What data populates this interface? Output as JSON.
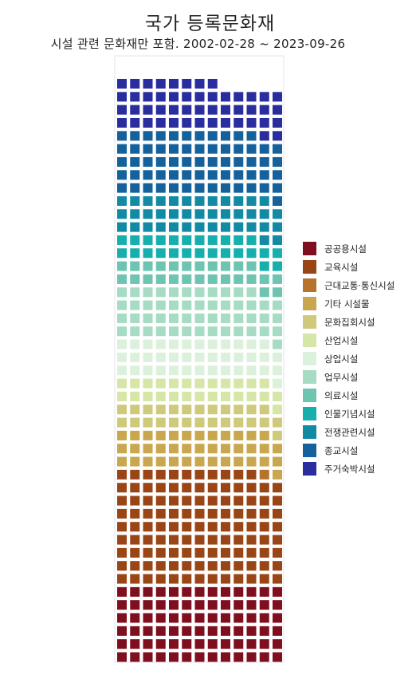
{
  "title": "국가 등록문화재",
  "subtitle": "시설 관련 문화재만 포함. 2002-02-28 ~ 2023-09-26",
  "chart_data": {
    "type": "waffle",
    "columns": 13,
    "legend_position": "right",
    "series": [
      {
        "name": "공공용시설",
        "value": 78,
        "color": "#7f0f1e"
      },
      {
        "name": "교육시설",
        "value": 115,
        "color": "#9a4516"
      },
      {
        "name": "근대교통·통신시설",
        "value": 1,
        "color": "#b5732b"
      },
      {
        "name": "기타 시설물",
        "value": 39,
        "color": "#c9a74e"
      },
      {
        "name": "문화집회시설",
        "value": 26,
        "color": "#cfc97b"
      },
      {
        "name": "산업시설",
        "value": 26,
        "color": "#d5e6a6"
      },
      {
        "name": "상업시설",
        "value": 39,
        "color": "#dcf1dc"
      },
      {
        "name": "업무시설",
        "value": 51,
        "color": "#a5dcc3"
      },
      {
        "name": "의료시설",
        "value": 26,
        "color": "#6ec4b1"
      },
      {
        "name": "인물기념시설",
        "value": 26,
        "color": "#17aeae"
      },
      {
        "name": "전쟁관련시설",
        "value": 40,
        "color": "#138aa3"
      },
      {
        "name": "종교시설",
        "value": 64,
        "color": "#14619b"
      },
      {
        "name": "주거숙박시설",
        "value": 49,
        "color": "#2a2d9e"
      }
    ]
  }
}
